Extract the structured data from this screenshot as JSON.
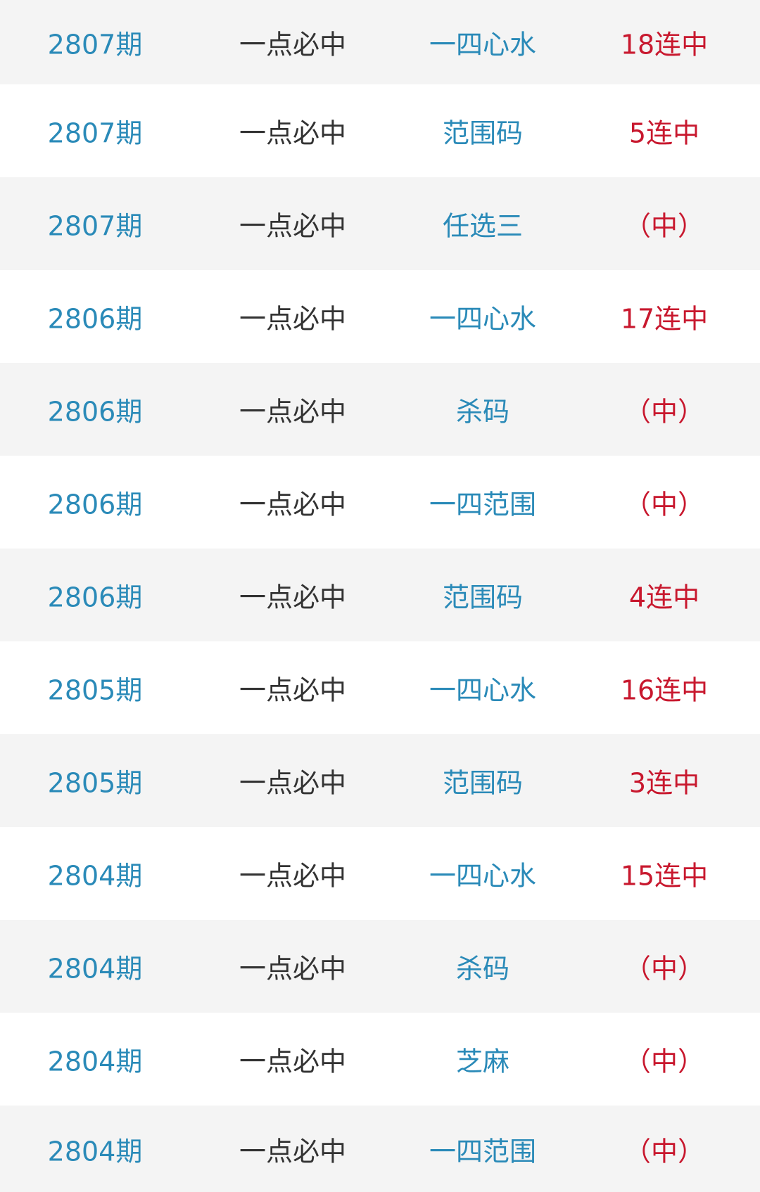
{
  "colors": {
    "period": "#2a8ab8",
    "category": "#333333",
    "type": "#2a8ab8",
    "result": "#c8182e",
    "row_odd": "#f4f4f4",
    "row_even": "#ffffff"
  },
  "rows": [
    {
      "period": "2807期",
      "category": "一点必中",
      "type": "一四心水",
      "result": "18连中"
    },
    {
      "period": "2807期",
      "category": "一点必中",
      "type": "范围码",
      "result": "5连中"
    },
    {
      "period": "2807期",
      "category": "一点必中",
      "type": "任选三",
      "result": "（中）"
    },
    {
      "period": "2806期",
      "category": "一点必中",
      "type": "一四心水",
      "result": "17连中"
    },
    {
      "period": "2806期",
      "category": "一点必中",
      "type": "杀码",
      "result": "（中）"
    },
    {
      "period": "2806期",
      "category": "一点必中",
      "type": "一四范围",
      "result": "（中）"
    },
    {
      "period": "2806期",
      "category": "一点必中",
      "type": "范围码",
      "result": "4连中"
    },
    {
      "period": "2805期",
      "category": "一点必中",
      "type": "一四心水",
      "result": "16连中"
    },
    {
      "period": "2805期",
      "category": "一点必中",
      "type": "范围码",
      "result": "3连中"
    },
    {
      "period": "2804期",
      "category": "一点必中",
      "type": "一四心水",
      "result": "15连中"
    },
    {
      "period": "2804期",
      "category": "一点必中",
      "type": "杀码",
      "result": "（中）"
    },
    {
      "period": "2804期",
      "category": "一点必中",
      "type": "芝麻",
      "result": "（中）"
    },
    {
      "period": "2804期",
      "category": "一点必中",
      "type": "一四范围",
      "result": "（中）"
    }
  ]
}
